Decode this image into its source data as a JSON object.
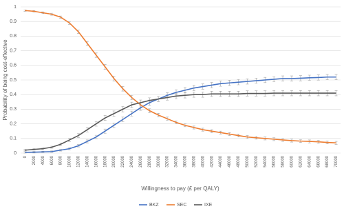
{
  "chart_data": {
    "type": "line",
    "x_label": "Willingness to pay (£ per QALY)",
    "y_label": "Probability of being cost-effective",
    "categories": [
      "0",
      "2000",
      "4000",
      "6000",
      "8000",
      "10000",
      "12000",
      "14000",
      "16000",
      "18000",
      "20000",
      "22000",
      "24000",
      "26000",
      "28000",
      "30000",
      "32000",
      "34000",
      "36000",
      "38000",
      "40000",
      "42000",
      "44000",
      "46000",
      "48000",
      "50000",
      "52000",
      "54000",
      "56000",
      "58000",
      "60000",
      "62000",
      "64000",
      "66000",
      "68000",
      "70000"
    ],
    "ylim": [
      0,
      1
    ],
    "yticks": [
      0,
      0.1,
      0.2,
      0.3,
      0.4,
      0.5,
      0.6,
      0.7,
      0.8,
      0.9,
      1
    ],
    "grid": true,
    "error_color": "#a5a5a5",
    "series": [
      {
        "name": "BKZ",
        "color": "#4472c4",
        "values": [
          0.005,
          0.006,
          0.008,
          0.01,
          0.02,
          0.03,
          0.05,
          0.08,
          0.11,
          0.15,
          0.19,
          0.23,
          0.27,
          0.31,
          0.345,
          0.37,
          0.395,
          0.415,
          0.43,
          0.445,
          0.455,
          0.465,
          0.475,
          0.48,
          0.485,
          0.49,
          0.495,
          0.5,
          0.505,
          0.51,
          0.51,
          0.512,
          0.515,
          0.517,
          0.52,
          0.52
        ],
        "errors": [
          0.005,
          0.005,
          0.005,
          0.005,
          0.006,
          0.007,
          0.008,
          0.01,
          0.012,
          0.014,
          0.015,
          0.016,
          0.017,
          0.018,
          0.018,
          0.018,
          0.018,
          0.018,
          0.018,
          0.018,
          0.018,
          0.018,
          0.018,
          0.018,
          0.018,
          0.018,
          0.018,
          0.018,
          0.018,
          0.018,
          0.018,
          0.018,
          0.018,
          0.018,
          0.018,
          0.018
        ]
      },
      {
        "name": "SEC",
        "color": "#ed7d31",
        "values": [
          0.975,
          0.97,
          0.96,
          0.95,
          0.93,
          0.89,
          0.83,
          0.75,
          0.67,
          0.59,
          0.51,
          0.44,
          0.38,
          0.33,
          0.29,
          0.26,
          0.235,
          0.21,
          0.19,
          0.175,
          0.16,
          0.15,
          0.14,
          0.13,
          0.12,
          0.11,
          0.105,
          0.1,
          0.095,
          0.09,
          0.085,
          0.082,
          0.08,
          0.077,
          0.073,
          0.07
        ],
        "errors": [
          0.005,
          0.005,
          0.006,
          0.007,
          0.008,
          0.01,
          0.012,
          0.014,
          0.015,
          0.016,
          0.016,
          0.016,
          0.015,
          0.014,
          0.013,
          0.012,
          0.011,
          0.01,
          0.01,
          0.01,
          0.01,
          0.01,
          0.01,
          0.01,
          0.01,
          0.01,
          0.01,
          0.01,
          0.01,
          0.01,
          0.01,
          0.01,
          0.01,
          0.01,
          0.01,
          0.01
        ]
      },
      {
        "name": "IXE",
        "color": "#595959",
        "values": [
          0.02,
          0.025,
          0.03,
          0.04,
          0.06,
          0.09,
          0.12,
          0.16,
          0.2,
          0.24,
          0.27,
          0.3,
          0.33,
          0.345,
          0.36,
          0.37,
          0.38,
          0.39,
          0.395,
          0.4,
          0.4,
          0.405,
          0.405,
          0.405,
          0.405,
          0.408,
          0.408,
          0.408,
          0.41,
          0.41,
          0.41,
          0.41,
          0.41,
          0.41,
          0.41,
          0.41
        ],
        "errors": [
          0.005,
          0.005,
          0.006,
          0.007,
          0.009,
          0.011,
          0.013,
          0.015,
          0.016,
          0.017,
          0.018,
          0.018,
          0.018,
          0.018,
          0.018,
          0.018,
          0.018,
          0.018,
          0.018,
          0.018,
          0.018,
          0.018,
          0.018,
          0.018,
          0.018,
          0.018,
          0.018,
          0.018,
          0.018,
          0.018,
          0.018,
          0.018,
          0.018,
          0.018,
          0.018,
          0.018
        ]
      }
    ]
  }
}
